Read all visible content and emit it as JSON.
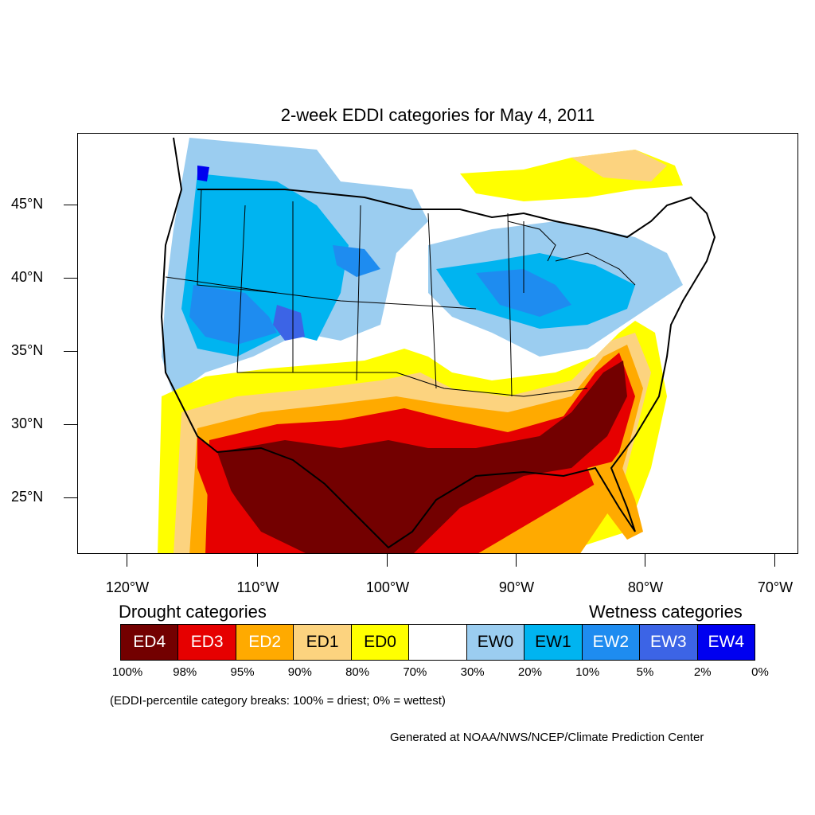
{
  "title": "2-week EDDI categories for May 4, 2011",
  "lat_labels": [
    "45°N",
    "40°N",
    "35°N",
    "30°N",
    "25°N"
  ],
  "lon_labels": [
    "120°W",
    "110°W",
    "100°W",
    "90°W",
    "80°W",
    "70°W"
  ],
  "legend": {
    "drought_heading": "Drought categories",
    "wetness_heading": "Wetness categories",
    "categories": [
      {
        "label": "ED4",
        "color": "#730000",
        "text_color": "#ffffff"
      },
      {
        "label": "ED3",
        "color": "#e60000",
        "text_color": "#ffffff"
      },
      {
        "label": "ED2",
        "color": "#ffaa00",
        "text_color": "#ffffff"
      },
      {
        "label": "ED1",
        "color": "#fcd37f",
        "text_color": "#000000"
      },
      {
        "label": "ED0",
        "color": "#ffff00",
        "text_color": "#000000"
      },
      {
        "label": "",
        "color": "#ffffff",
        "text_color": "#000000"
      },
      {
        "label": "EW0",
        "color": "#9bcdf0",
        "text_color": "#000000"
      },
      {
        "label": "EW1",
        "color": "#00b4f0",
        "text_color": "#000000"
      },
      {
        "label": "EW2",
        "color": "#1e8cf0",
        "text_color": "#ffffff"
      },
      {
        "label": "EW3",
        "color": "#3c64e6",
        "text_color": "#ffffff"
      },
      {
        "label": "EW4",
        "color": "#0000f0",
        "text_color": "#ffffff"
      }
    ],
    "percent_breaks": [
      "100%",
      "98%",
      "95%",
      "90%",
      "80%",
      "70%",
      "30%",
      "20%",
      "10%",
      "5%",
      "2%",
      "0%"
    ]
  },
  "footnote": "(EDDI-percentile category breaks: 100% = driest; 0% = wettest)",
  "credit": "Generated at NOAA/NWS/NCEP/Climate Prediction Center"
}
